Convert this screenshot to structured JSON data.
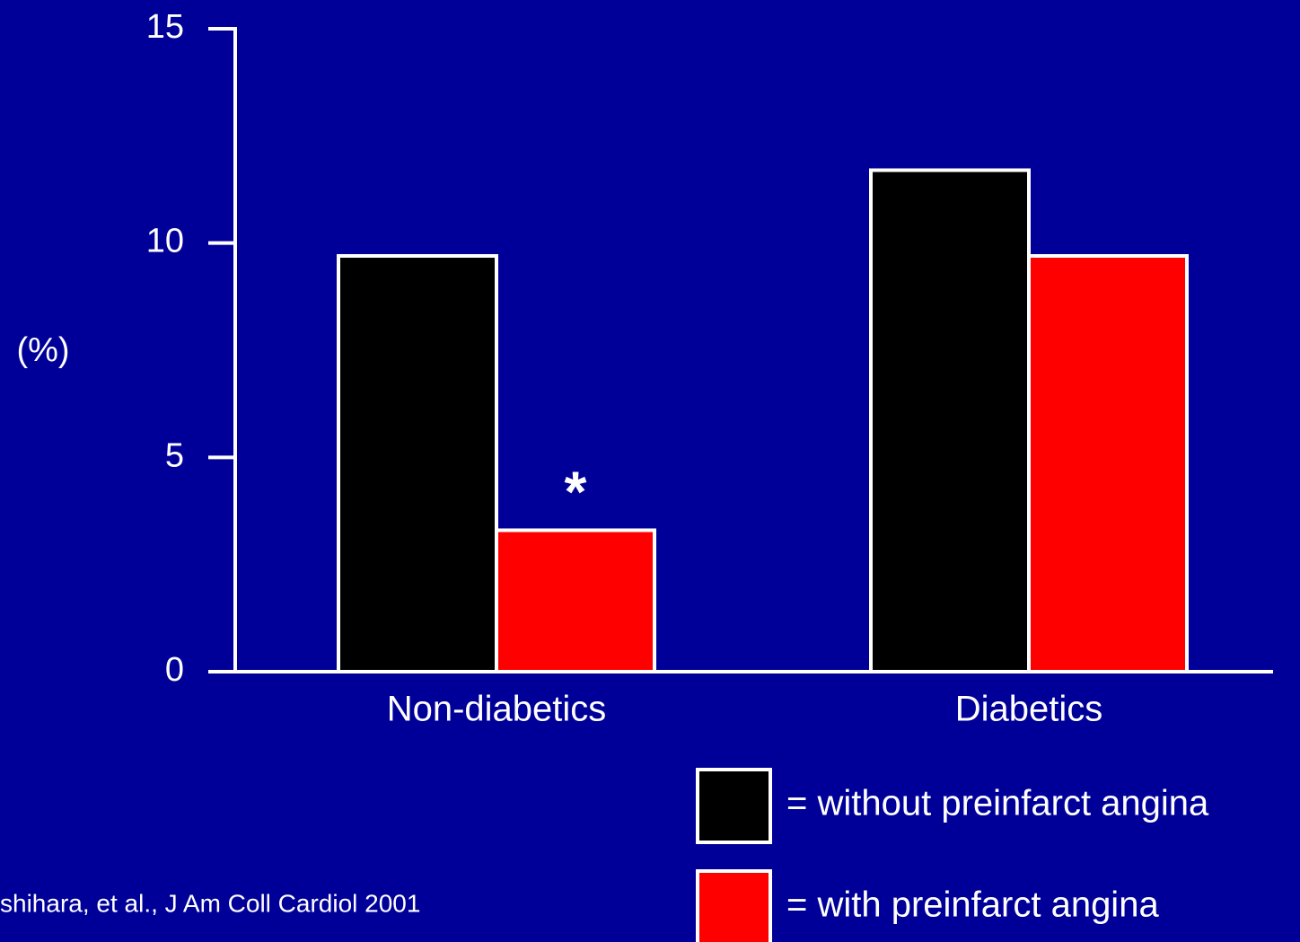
{
  "chart_data": {
    "type": "bar",
    "y_label": "(%)",
    "categories": [
      "Non-diabetics",
      "Diabetics"
    ],
    "series": [
      {
        "name": "= without preinfarct angina",
        "color": "#000000",
        "values": [
          9.7,
          11.7
        ]
      },
      {
        "name": "= with preinfarct angina",
        "color": "#ff0000",
        "values": [
          3.3,
          9.7
        ]
      }
    ],
    "ylim": [
      0,
      15
    ],
    "yticks": [
      0,
      5,
      10,
      15
    ],
    "annotation": "*",
    "source": "shihara, et al., J Am Coll Cardiol 2001"
  }
}
